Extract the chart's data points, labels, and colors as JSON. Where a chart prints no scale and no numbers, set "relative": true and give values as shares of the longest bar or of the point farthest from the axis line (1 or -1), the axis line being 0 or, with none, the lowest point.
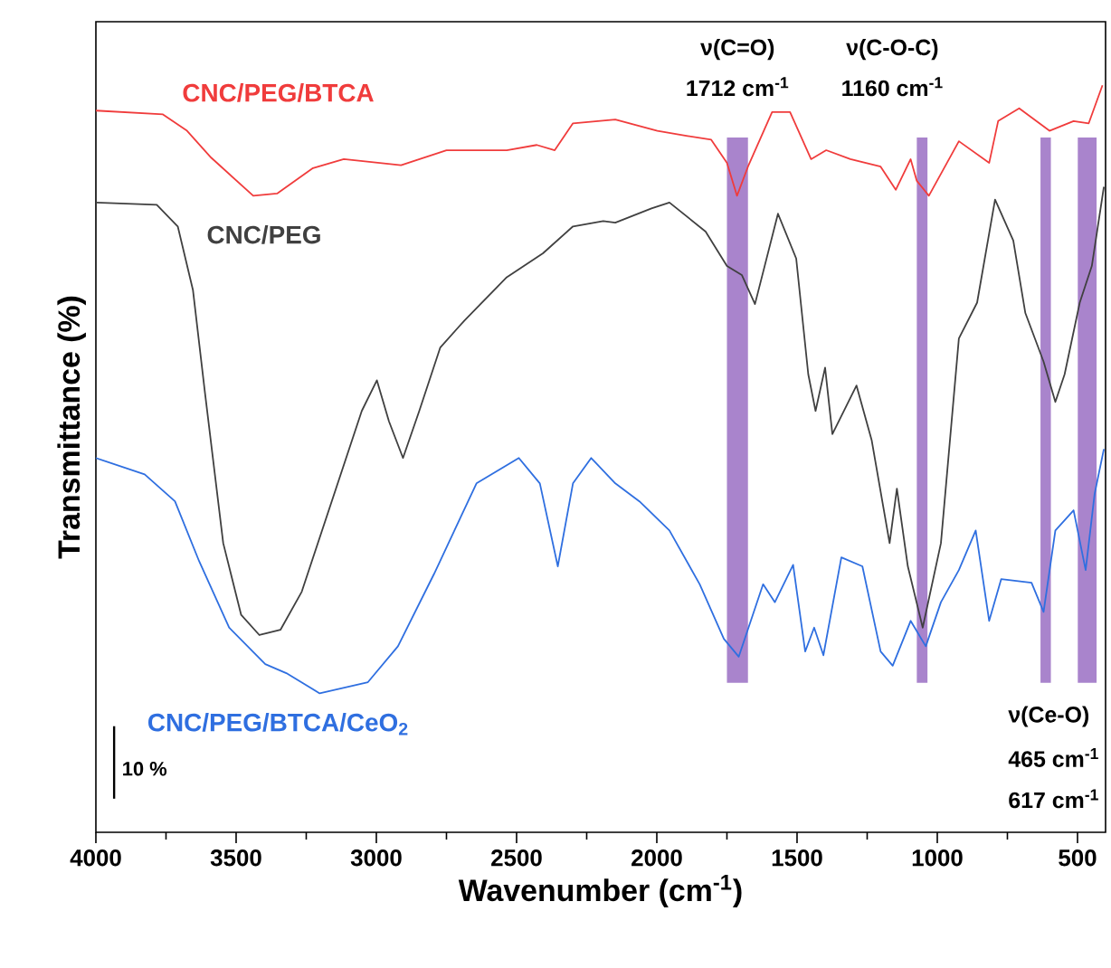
{
  "chart_data": {
    "type": "line",
    "relative": true,
    "xlabel": "Wavenumber (cm$^{-1}$)",
    "ylabel": "Transmittance (%)",
    "xlim": [
      4000,
      400
    ],
    "xticks": [
      4000,
      3500,
      3000,
      2500,
      2000,
      1500,
      1000,
      500
    ],
    "series": [
      {
        "name": "CNC/PEG/BTCA",
        "color": "#f03c3c",
        "x": [
          4000,
          3761,
          3675,
          3589,
          3439,
          3354,
          3226,
          3116,
          2912,
          2750,
          2535,
          2428,
          2364,
          2299,
          2148,
          1998,
          1890,
          1806,
          1750,
          1714,
          1675,
          1589,
          1525,
          1450,
          1396,
          1310,
          1202,
          1148,
          1095,
          1073,
          1030,
          923,
          815,
          783,
          708,
          600,
          514,
          460,
          411
        ],
        "values": [
          0.966,
          0.961,
          0.939,
          0.903,
          0.852,
          0.855,
          0.889,
          0.901,
          0.893,
          0.913,
          0.913,
          0.92,
          0.913,
          0.949,
          0.954,
          0.939,
          0.932,
          0.927,
          0.896,
          0.852,
          0.891,
          0.964,
          0.964,
          0.901,
          0.913,
          0.901,
          0.891,
          0.86,
          0.901,
          0.872,
          0.852,
          0.925,
          0.896,
          0.952,
          0.969,
          0.939,
          0.952,
          0.949,
          1.0
        ]
      },
      {
        "name": "CNC/PEG",
        "color": "#404040",
        "x": [
          4000,
          3783,
          3708,
          3654,
          3611,
          3546,
          3482,
          3417,
          3342,
          3266,
          3159,
          3052,
          2998,
          2955,
          2905,
          2847,
          2772,
          2686,
          2535,
          2406,
          2299,
          2191,
          2148,
          2019,
          1955,
          1826,
          1750,
          1697,
          1650,
          1568,
          1503,
          1460,
          1434,
          1400,
          1374,
          1288,
          1234,
          1170,
          1144,
          1105,
          1052,
          987,
          923,
          858,
          794,
          729,
          686,
          621,
          579,
          546,
          492,
          449,
          406
        ],
        "values": [
          0.843,
          0.84,
          0.811,
          0.726,
          0.588,
          0.387,
          0.291,
          0.264,
          0.271,
          0.322,
          0.443,
          0.564,
          0.605,
          0.55,
          0.501,
          0.564,
          0.649,
          0.685,
          0.743,
          0.775,
          0.811,
          0.818,
          0.816,
          0.835,
          0.843,
          0.804,
          0.758,
          0.746,
          0.707,
          0.828,
          0.768,
          0.613,
          0.564,
          0.622,
          0.533,
          0.598,
          0.525,
          0.387,
          0.46,
          0.356,
          0.274,
          0.387,
          0.661,
          0.709,
          0.847,
          0.792,
          0.695,
          0.63,
          0.576,
          0.613,
          0.709,
          0.758,
          0.864
        ]
      },
      {
        "name": "CNC/PEG/BTCA/CeO$_{2}$",
        "color": "#2f6fe0",
        "x": [
          4000,
          3826,
          3718,
          3632,
          3525,
          3396,
          3321,
          3202,
          3030,
          2923,
          2794,
          2643,
          2492,
          2417,
          2353,
          2299,
          2234,
          2148,
          2062,
          1955,
          1847,
          1761,
          1708,
          1621,
          1579,
          1514,
          1471,
          1439,
          1406,
          1342,
          1267,
          1202,
          1159,
          1095,
          1041,
          987,
          923,
          863,
          815,
          772,
          664,
          621,
          579,
          514,
          471,
          439,
          406
        ],
        "values": [
          0.501,
          0.479,
          0.443,
          0.363,
          0.274,
          0.225,
          0.213,
          0.186,
          0.201,
          0.249,
          0.346,
          0.467,
          0.501,
          0.467,
          0.356,
          0.467,
          0.501,
          0.467,
          0.443,
          0.404,
          0.332,
          0.259,
          0.235,
          0.332,
          0.308,
          0.358,
          0.242,
          0.274,
          0.237,
          0.368,
          0.356,
          0.242,
          0.223,
          0.283,
          0.249,
          0.308,
          0.351,
          0.404,
          0.283,
          0.339,
          0.334,
          0.295,
          0.404,
          0.431,
          0.351,
          0.453,
          0.513
        ]
      }
    ],
    "bands": [
      {
        "axis": "x",
        "from": 1750,
        "to": 1675,
        "color": "#a984cc"
      },
      {
        "axis": "x",
        "from": 1073,
        "to": 1035,
        "color": "#a984cc"
      },
      {
        "axis": "x",
        "from": 632,
        "to": 595,
        "color": "#a984cc"
      },
      {
        "axis": "x",
        "from": 499,
        "to": 432,
        "color": "#a984cc"
      }
    ],
    "annotations": [
      "ν(C=O)",
      "1712 cm$^{-1}$",
      "ν(C-O-C)",
      "1160 cm$^{-1}$",
      "ν(Ce-O)",
      "465 cm$^{-1}$",
      "617 cm$^{-1}$",
      "10 %"
    ],
    "legend": false
  }
}
